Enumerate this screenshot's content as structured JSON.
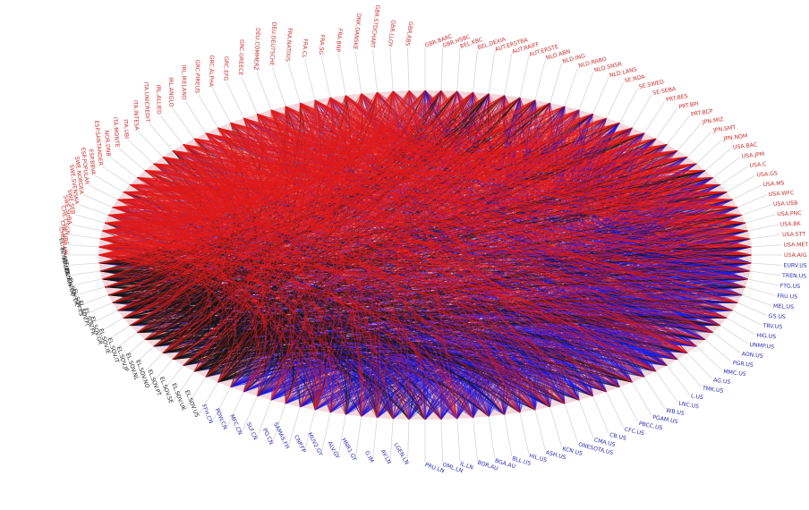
{
  "colors": {
    "red": "#e21b1b",
    "blue": "#1a1ae0",
    "black": "#151515",
    "label_red": "#c93030",
    "label_blue": "#2d2db0",
    "label_black": "#222222",
    "tick": "#d6d6d6",
    "background": "#ffffff"
  },
  "nodes": [
    {
      "label": "GBR.BARC",
      "group": "red"
    },
    {
      "label": "GBR.HSBC",
      "group": "red"
    },
    {
      "label": "BEL.KBC",
      "group": "red"
    },
    {
      "label": "BEL.DEXIA",
      "group": "red"
    },
    {
      "label": "AUT.ERSTBA",
      "group": "red"
    },
    {
      "label": "AUT.RAIFF",
      "group": "red"
    },
    {
      "label": "AUT.ERSTE",
      "group": "red"
    },
    {
      "label": "NLD.ABN",
      "group": "red"
    },
    {
      "label": "NLD.ING",
      "group": "red"
    },
    {
      "label": "NLD.RABO",
      "group": "red"
    },
    {
      "label": "NLD.SNSR",
      "group": "red"
    },
    {
      "label": "NLD.LANS",
      "group": "red"
    },
    {
      "label": "SE.NDA",
      "group": "red"
    },
    {
      "label": "SE.SWED",
      "group": "red"
    },
    {
      "label": "SE.SEBA",
      "group": "red"
    },
    {
      "label": "PRT.BES",
      "group": "red"
    },
    {
      "label": "PRT.BPI",
      "group": "red"
    },
    {
      "label": "PRT.BCP",
      "group": "red"
    },
    {
      "label": "JPN.MIZ",
      "group": "red"
    },
    {
      "label": "JPN.SMT",
      "group": "red"
    },
    {
      "label": "JPN.NOM",
      "group": "red"
    },
    {
      "label": "USA.BAC",
      "group": "red"
    },
    {
      "label": "USA.JPM",
      "group": "red"
    },
    {
      "label": "USA.C",
      "group": "red"
    },
    {
      "label": "USA.GS",
      "group": "red"
    },
    {
      "label": "USA.MS",
      "group": "red"
    },
    {
      "label": "USA.WFC",
      "group": "red"
    },
    {
      "label": "USA.USB",
      "group": "red"
    },
    {
      "label": "USA.PNC",
      "group": "red"
    },
    {
      "label": "USA.BK",
      "group": "red"
    },
    {
      "label": "USA.STT",
      "group": "red"
    },
    {
      "label": "USA.MET",
      "group": "red"
    },
    {
      "label": "USA.AIG",
      "group": "red"
    },
    {
      "label": "EURV.US",
      "group": "blue"
    },
    {
      "label": "TREN.US",
      "group": "blue"
    },
    {
      "label": "FTG.US",
      "group": "blue"
    },
    {
      "label": "FRU.US",
      "group": "blue"
    },
    {
      "label": "MEL.US",
      "group": "blue"
    },
    {
      "label": "GS.US",
      "group": "blue"
    },
    {
      "label": "TRV.US",
      "group": "blue"
    },
    {
      "label": "HIG.US",
      "group": "blue"
    },
    {
      "label": "UNMP.US",
      "group": "blue"
    },
    {
      "label": "AON.US",
      "group": "blue"
    },
    {
      "label": "PGR.US",
      "group": "blue"
    },
    {
      "label": "MMC.US",
      "group": "blue"
    },
    {
      "label": "AG.US",
      "group": "blue"
    },
    {
      "label": "TMK.US",
      "group": "blue"
    },
    {
      "label": "L.US",
      "group": "blue"
    },
    {
      "label": "LNC.US",
      "group": "blue"
    },
    {
      "label": "WB.US",
      "group": "blue"
    },
    {
      "label": "PGAM.US",
      "group": "blue"
    },
    {
      "label": "PBCC.US",
      "group": "blue"
    },
    {
      "label": "CFC.US",
      "group": "blue"
    },
    {
      "label": "CB.US",
      "group": "blue"
    },
    {
      "label": "CMA.US",
      "group": "blue"
    },
    {
      "label": "ONESOTA.US",
      "group": "blue"
    },
    {
      "label": "KCN.US",
      "group": "blue"
    },
    {
      "label": "ASH.US",
      "group": "blue"
    },
    {
      "label": "HIL.US",
      "group": "blue"
    },
    {
      "label": "BLL.US",
      "group": "blue"
    },
    {
      "label": "BGA.AU",
      "group": "blue"
    },
    {
      "label": "BOR.AU",
      "group": "blue"
    },
    {
      "label": "IL.LN",
      "group": "blue"
    },
    {
      "label": "OML.LN",
      "group": "blue"
    },
    {
      "label": "PRU.LN",
      "group": "blue"
    },
    {
      "label": "LGEN.LN",
      "group": "blue"
    },
    {
      "label": "AV.LN",
      "group": "blue"
    },
    {
      "label": "G.IM",
      "group": "blue"
    },
    {
      "label": "HNR1.GY",
      "group": "blue"
    },
    {
      "label": "ALV.GY",
      "group": "blue"
    },
    {
      "label": "MUV2.GY",
      "group": "blue"
    },
    {
      "label": "CNP.FP",
      "group": "blue"
    },
    {
      "label": "SAMAS.FH",
      "group": "blue"
    },
    {
      "label": "PO.CN",
      "group": "blue"
    },
    {
      "label": "SLF.CN",
      "group": "blue"
    },
    {
      "label": "MFC.CN",
      "group": "blue"
    },
    {
      "label": "POW.CN",
      "group": "blue"
    },
    {
      "label": "FFH.CN",
      "group": "blue"
    },
    {
      "label": "EL.SOV.US",
      "group": "black"
    },
    {
      "label": "EL.SOV.UK",
      "group": "black"
    },
    {
      "label": "EL.SOV.SE",
      "group": "black"
    },
    {
      "label": "EL.SOV.PT",
      "group": "black"
    },
    {
      "label": "EL.SOV.NO",
      "group": "black"
    },
    {
      "label": "EL.SOV.NL",
      "group": "black"
    },
    {
      "label": "EL.SOV.JP",
      "group": "black"
    },
    {
      "label": "EL.SOV.IT",
      "group": "black"
    },
    {
      "label": "EL.SOV.IE",
      "group": "black"
    },
    {
      "label": "EL.SOV.GR",
      "group": "black"
    },
    {
      "label": "EL.SOV.FR",
      "group": "black"
    },
    {
      "label": "EL.SOV.FI",
      "group": "black"
    },
    {
      "label": "EL.SOV.ES",
      "group": "black"
    },
    {
      "label": "EL.SOV.DK",
      "group": "black"
    },
    {
      "label": "EL.SOV.DE",
      "group": "black"
    },
    {
      "label": "EL.SOV.CH",
      "group": "black"
    },
    {
      "label": "EL.SOV.BE",
      "group": "black"
    },
    {
      "label": "EL.SOV.AT",
      "group": "black"
    },
    {
      "label": "CHE.SLHN",
      "group": "red"
    },
    {
      "label": "CHE.UBS",
      "group": "red"
    },
    {
      "label": "CHE.CSGN",
      "group": "red"
    },
    {
      "label": "SWE.SHBA",
      "group": "red"
    },
    {
      "label": "SWE.SEB",
      "group": "red"
    },
    {
      "label": "SWE.SVENSKA",
      "group": "red"
    },
    {
      "label": "SWE.NORDEA",
      "group": "red"
    },
    {
      "label": "ESP.POPULAR",
      "group": "red"
    },
    {
      "label": "ESP.BBVA",
      "group": "red"
    },
    {
      "label": "ESP.SANTANDER",
      "group": "red"
    },
    {
      "label": "NOR.DNB",
      "group": "red"
    },
    {
      "label": "ITA.MONTE",
      "group": "red"
    },
    {
      "label": "ITA.UBI",
      "group": "red"
    },
    {
      "label": "ITA.INTESA",
      "group": "red"
    },
    {
      "label": "ITA.UNICREDIT",
      "group": "red"
    },
    {
      "label": "IRL.ALLIED",
      "group": "red"
    },
    {
      "label": "IRL.ANGLO",
      "group": "red"
    },
    {
      "label": "IRL.IRELAND",
      "group": "red"
    },
    {
      "label": "GRC.PIREUS",
      "group": "red"
    },
    {
      "label": "GRC.ALPHA",
      "group": "red"
    },
    {
      "label": "GRC.EFG",
      "group": "red"
    },
    {
      "label": "GRC.GREECE",
      "group": "red"
    },
    {
      "label": "DEU.COMMERZ",
      "group": "red"
    },
    {
      "label": "DEU.DEUTSCHE",
      "group": "red"
    },
    {
      "label": "FRA.NATIXIS",
      "group": "red"
    },
    {
      "label": "FRA.CL",
      "group": "red"
    },
    {
      "label": "FRA.SG",
      "group": "red"
    },
    {
      "label": "FRA.BNP",
      "group": "red"
    },
    {
      "label": "DNK.DANSKE",
      "group": "red"
    },
    {
      "label": "GBR.STDCHART",
      "group": "red"
    },
    {
      "label": "GBR.LLOY",
      "group": "red"
    },
    {
      "label": "GBR.RBS",
      "group": "red"
    }
  ]
}
